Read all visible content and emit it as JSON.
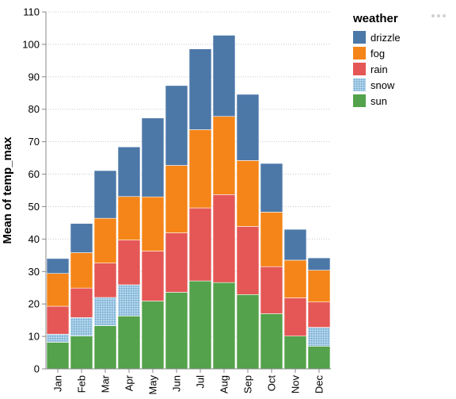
{
  "chart_data": {
    "type": "bar",
    "stacked": true,
    "title": "",
    "xlabel": "",
    "ylabel": "Mean of temp_max",
    "ylim": [
      0,
      110
    ],
    "y_ticks": [
      0,
      10,
      20,
      30,
      40,
      50,
      60,
      70,
      80,
      90,
      100,
      110
    ],
    "grid": true,
    "legend": {
      "title": "weather",
      "placement": "top-right"
    },
    "categories": [
      "Jan",
      "Feb",
      "Mar",
      "Apr",
      "May",
      "Jun",
      "Jul",
      "Aug",
      "Sep",
      "Oct",
      "Nov",
      "Dec"
    ],
    "series": [
      {
        "name": "sun",
        "color": "#54a24b",
        "pattern": false,
        "values": [
          8.2,
          10.1,
          13.3,
          16.3,
          20.9,
          23.6,
          27.1,
          26.6,
          22.9,
          17.0,
          10.1,
          7.0
        ]
      },
      {
        "name": "snow",
        "color": "#9ecae9",
        "pattern": true,
        "values": [
          2.5,
          5.7,
          8.7,
          9.6,
          0,
          0,
          0,
          0,
          0,
          0,
          0,
          5.8
        ]
      },
      {
        "name": "rain",
        "color": "#e45756",
        "pattern": false,
        "values": [
          8.6,
          9.1,
          10.6,
          13.8,
          15.4,
          18.3,
          22.5,
          27.1,
          21.0,
          14.5,
          11.8,
          7.8
        ]
      },
      {
        "name": "fog",
        "color": "#f58518",
        "pattern": false,
        "values": [
          10.1,
          10.9,
          13.8,
          13.4,
          16.7,
          20.8,
          24.1,
          24.1,
          20.3,
          16.8,
          11.6,
          9.8
        ]
      },
      {
        "name": "drizzle",
        "color": "#4c78a8",
        "pattern": false,
        "values": [
          4.6,
          9.0,
          14.7,
          15.3,
          24.3,
          24.6,
          24.9,
          25.0,
          20.4,
          15.0,
          9.5,
          3.8
        ]
      }
    ],
    "legend_order": [
      "drizzle",
      "fog",
      "rain",
      "snow",
      "sun"
    ]
  }
}
